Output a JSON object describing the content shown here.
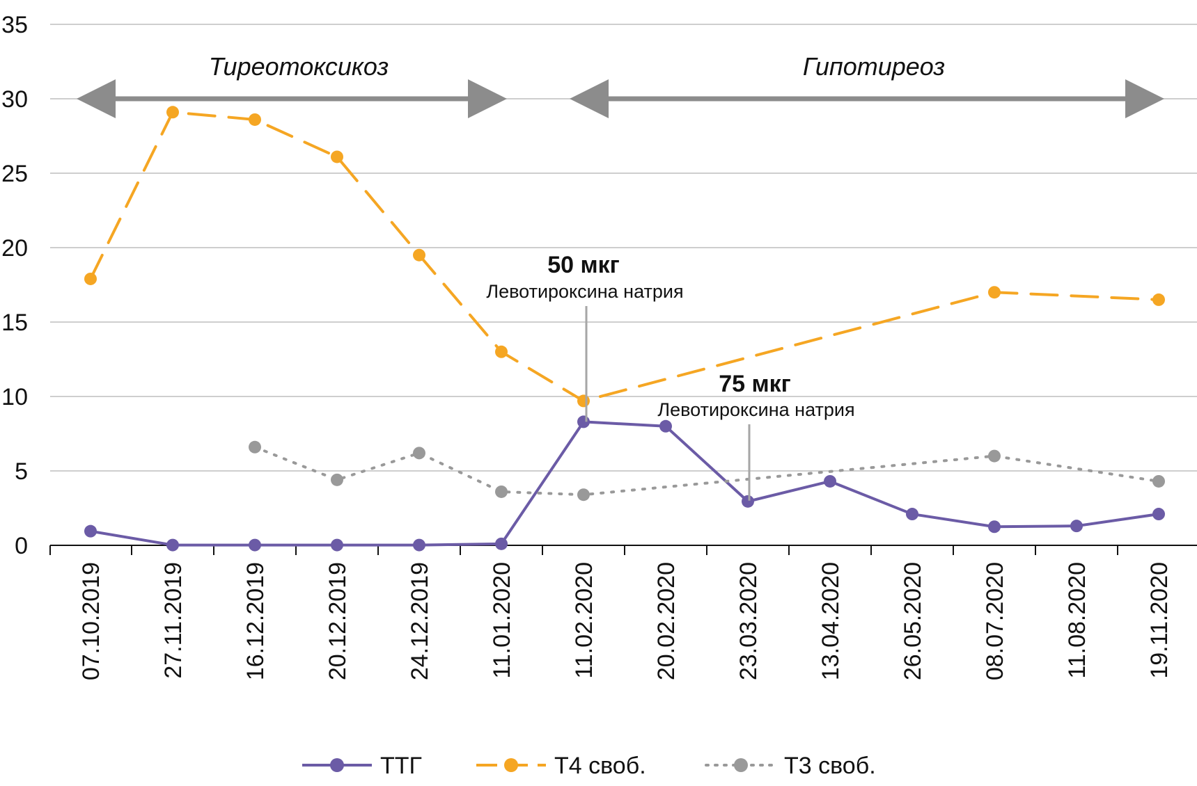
{
  "chart_data": {
    "type": "line",
    "title": "",
    "xlabel": "",
    "ylabel": "",
    "ylim": [
      0,
      35
    ],
    "yticks": [
      0,
      5,
      10,
      15,
      20,
      25,
      30,
      35
    ],
    "grid": true,
    "legend": "bottom",
    "categories": [
      "07.10.2019",
      "27.11.2019",
      "16.12.2019",
      "20.12.2019",
      "24.12.2019",
      "11.01.2020",
      "11.02.2020",
      "20.02.2020",
      "23.03.2020",
      "13.04.2020",
      "26.05.2020",
      "08.07.2020",
      "11.08.2020",
      "19.11.2020"
    ],
    "series": [
      {
        "name": "ТТГ",
        "color": "#6b5ba6",
        "style": "solid",
        "values": [
          0.95,
          0.02,
          0.02,
          0.02,
          0.02,
          0.1,
          8.3,
          8.0,
          2.95,
          4.3,
          2.1,
          1.25,
          1.3,
          2.1
        ]
      },
      {
        "name": "Т4 своб.",
        "color": "#f5a623",
        "style": "dashed",
        "values": [
          17.9,
          29.1,
          28.6,
          26.1,
          19.5,
          13.0,
          9.7,
          null,
          null,
          null,
          null,
          17.0,
          null,
          16.5
        ]
      },
      {
        "name": "Т3 своб.",
        "color": "#999999",
        "style": "dotted",
        "values": [
          null,
          null,
          6.6,
          4.4,
          6.2,
          3.6,
          3.4,
          null,
          null,
          null,
          null,
          6.0,
          null,
          4.3
        ]
      }
    ],
    "periods": [
      {
        "label": "Тиреотоксикоз",
        "from_index": 0,
        "to_index": 5
      },
      {
        "label": "Гипотиреоз",
        "from_index": 6,
        "to_index": 13
      }
    ],
    "annotations": [
      {
        "dose": "50 мкг",
        "drug": "Левотироксина натрия",
        "index": 6
      },
      {
        "dose": "75 мкг",
        "drug": "Левотироксина натрия",
        "index": 8
      }
    ]
  }
}
